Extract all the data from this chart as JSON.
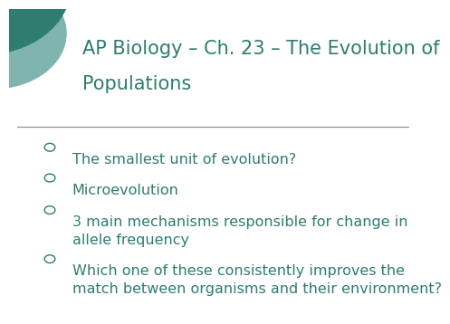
{
  "title_line1": "AP Biology – Ch. 23 – The Evolution of",
  "title_line2": "Populations",
  "title_color": "#2e7d6e",
  "bg_color": "#ffffff",
  "bullet_color": "#2e7d6e",
  "text_color": "#2e7d6e",
  "separator_color": "#888888",
  "bullets": [
    "The smallest unit of evolution?",
    "Microevolution",
    "3 main mechanisms responsible for change in\nallele frequency",
    "Which one of these consistently improves the\nmatch between organisms and their environment?"
  ],
  "title_fontsize": 15,
  "bullet_fontsize": 11.5,
  "circle_decoration_color1": "#2e7d6e",
  "circle_decoration_color2": "#7fb5ae",
  "bullet_starts": [
    0.53,
    0.43,
    0.325,
    0.165
  ]
}
